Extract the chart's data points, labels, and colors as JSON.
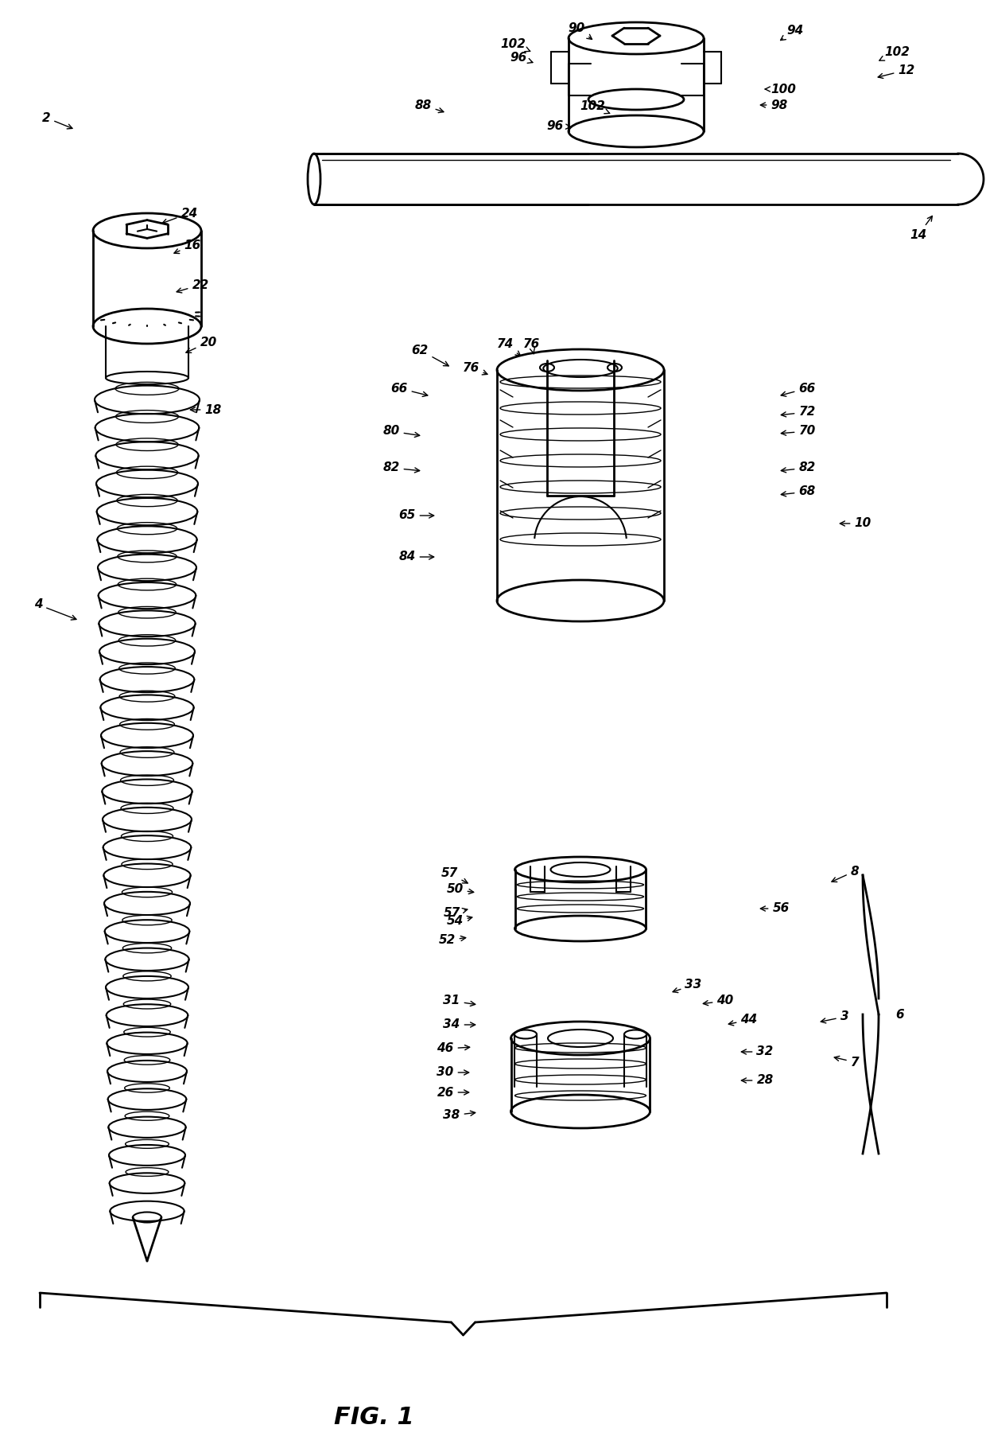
{
  "title": "FIG. 1",
  "bg_color": "#ffffff",
  "line_color": "#000000",
  "fig_width": 12.4,
  "fig_height": 18.25,
  "dpi": 100
}
